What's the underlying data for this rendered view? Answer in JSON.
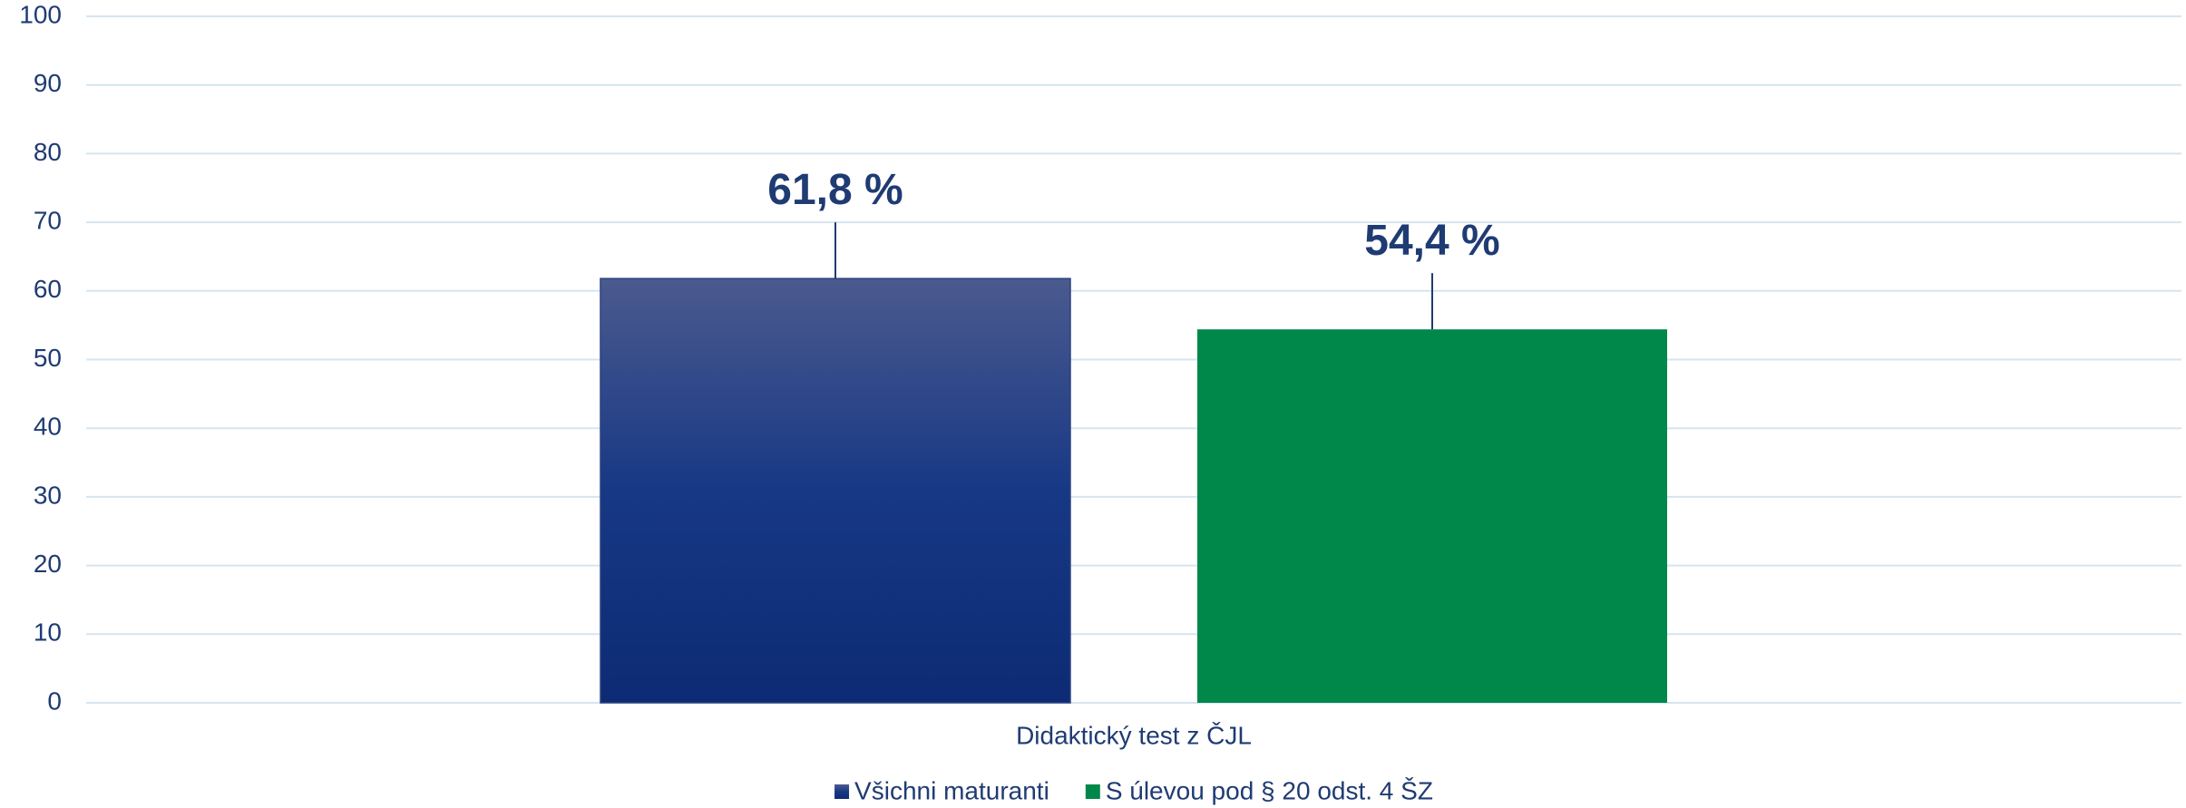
{
  "chart_data": {
    "type": "bar",
    "categories": [
      "Didaktický test z ČJL"
    ],
    "series": [
      {
        "name": "Všichni maturanti",
        "color": "#12317a",
        "values": [
          61.8
        ],
        "value_labels": [
          "61,8 %"
        ]
      },
      {
        "name": "S úlevou pod § 20 odst. 4 ŠZ",
        "color": "#00884a",
        "values": [
          54.4
        ],
        "value_labels": [
          "54,4 %"
        ]
      }
    ],
    "ylim": [
      0,
      100
    ],
    "yticks": [
      0,
      10,
      20,
      30,
      40,
      50,
      60,
      70,
      80,
      90,
      100
    ],
    "grid": true,
    "legend": "bottom"
  }
}
